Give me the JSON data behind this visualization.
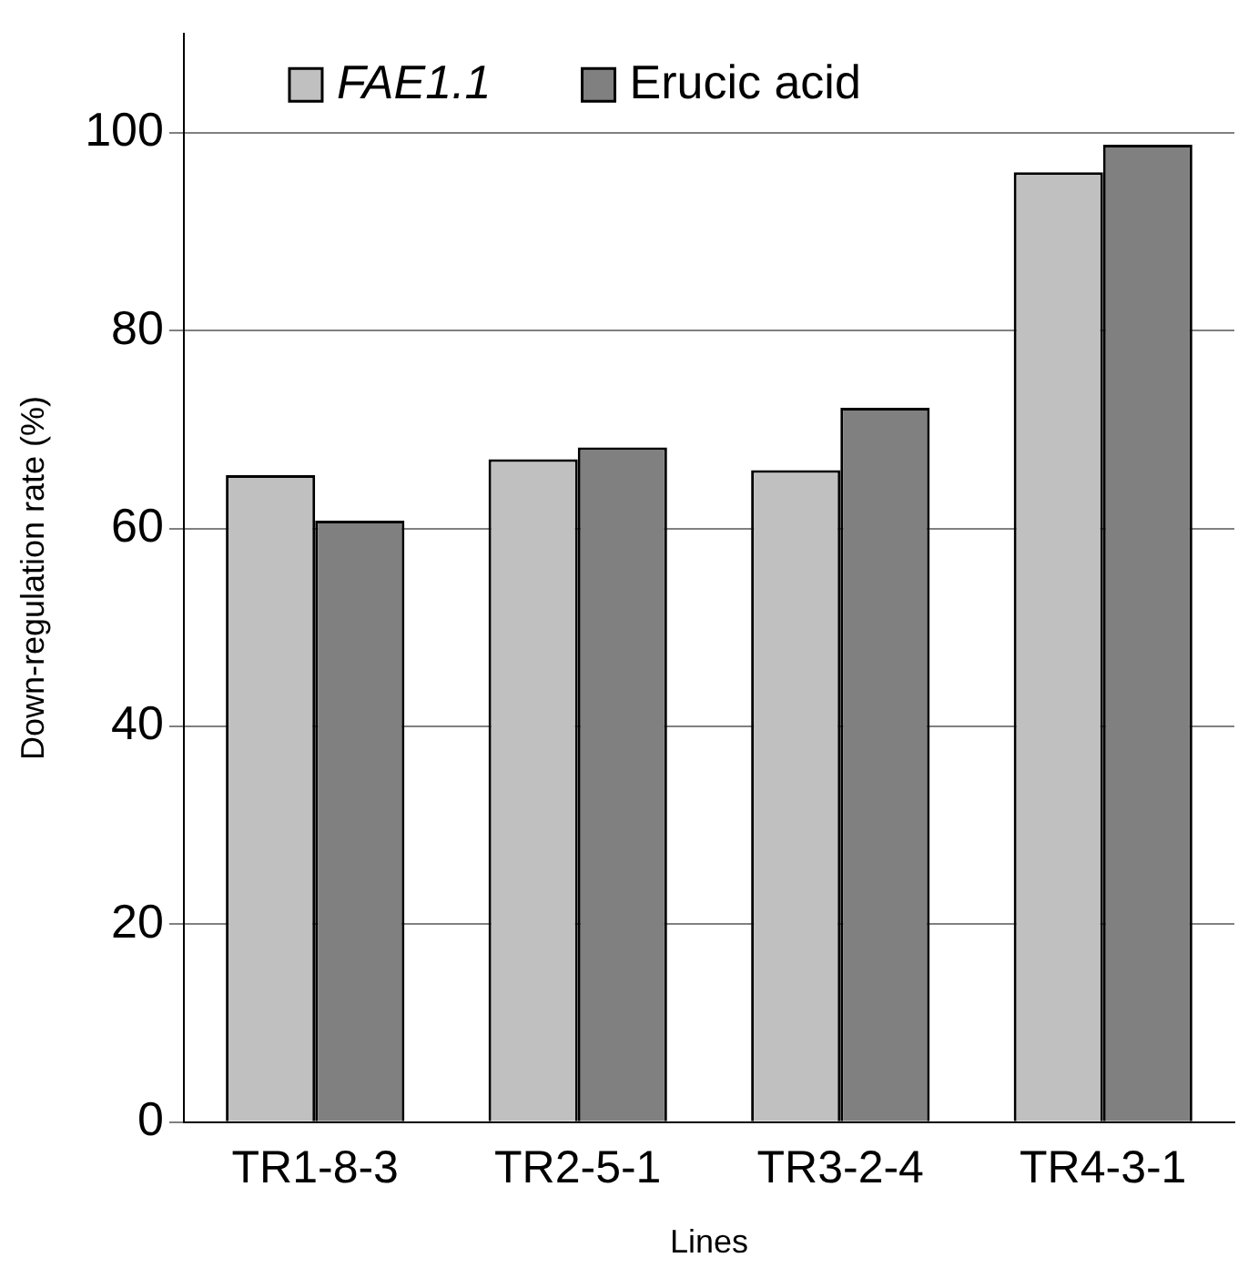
{
  "chart_data": {
    "type": "bar",
    "xlabel": "Lines",
    "ylabel": "Down-regulation rate (%)",
    "categories": [
      "TR1-8-3",
      "TR2-5-1",
      "TR3-2-4",
      "TR4-3-1"
    ],
    "series": [
      {
        "name": "FAE1.1",
        "color": "#c0c0c0",
        "values": [
          65.4,
          67.0,
          65.9,
          96.0
        ]
      },
      {
        "name": "Erucic acid",
        "color": "#808080",
        "values": [
          60.8,
          68.2,
          72.2,
          98.8
        ]
      }
    ],
    "ylim": [
      0,
      110
    ],
    "yticks": [
      0,
      20,
      40,
      60,
      80,
      100
    ],
    "grid": "y",
    "legend": "top"
  }
}
